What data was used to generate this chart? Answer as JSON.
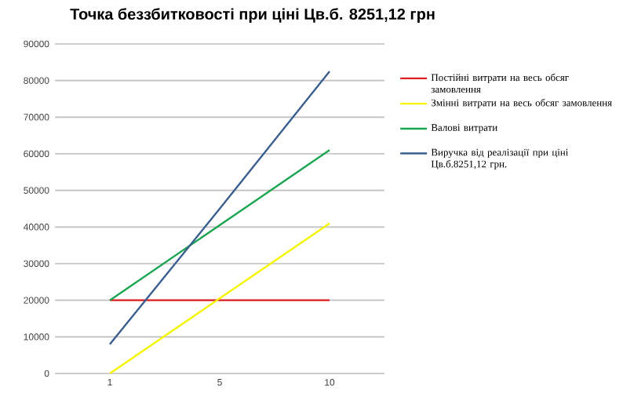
{
  "chart_data": {
    "type": "line",
    "title": "Точка беззбитковості при ціні Цв.б. 8251,12 грн",
    "categories": [
      "1",
      "5",
      "10"
    ],
    "series": [
      {
        "name": "Постійні витрати на весь обсяг замовлення",
        "color": "#e02020",
        "values": [
          20000,
          20000,
          20000
        ]
      },
      {
        "name": "Змінні витрати на весь обсяг замовлення",
        "color": "#f5f500",
        "values": [
          0,
          20500,
          41000
        ]
      },
      {
        "name": "Валові витрати",
        "color": "#1aa550",
        "values": [
          20000,
          40500,
          61000
        ]
      },
      {
        "name": "Виручка від реалізації при ціні Цв.б.8251,12 грн.",
        "color": "#3a5f8f",
        "values": [
          8000,
          45000,
          82500
        ]
      }
    ],
    "ylim": [
      0,
      90000
    ],
    "yticks": [
      0,
      10000,
      20000,
      30000,
      40000,
      50000,
      60000,
      70000,
      80000,
      90000
    ],
    "grid": "y",
    "legend": "right",
    "marker": "none",
    "line_style": "solid"
  }
}
